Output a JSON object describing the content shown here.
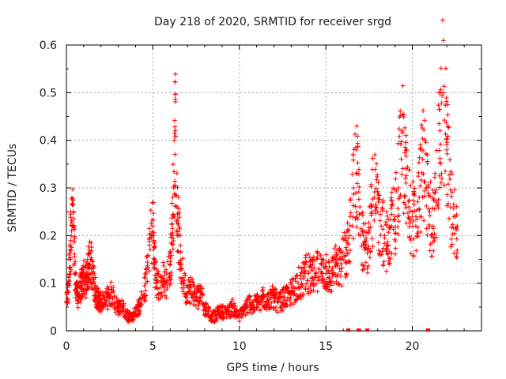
{
  "chart_data": {
    "type": "scatter",
    "title": "Day 218 of 2020, SRMTID for receiver srgd",
    "xlabel": "GPS time / hours",
    "ylabel": "SRMTID / TECUs",
    "xlim": [
      0,
      24
    ],
    "ylim": [
      0,
      0.6
    ],
    "x_ticks": [
      0,
      5,
      10,
      15,
      20
    ],
    "x_tick_labels": [
      "0",
      "5",
      "10",
      "15",
      "20"
    ],
    "y_ticks": [
      0,
      0.1,
      0.2,
      0.3,
      0.4,
      0.5,
      0.6
    ],
    "y_tick_labels": [
      "0",
      "0.1",
      "0.2",
      "0.3",
      "0.4",
      "0.5",
      "0.6"
    ],
    "grid": true,
    "marker": "+",
    "marker_color": "#ff0000",
    "x_range_data": [
      0,
      22.6
    ],
    "gap_markers_x": [
      16.3,
      16.9,
      17.4,
      20.9
    ],
    "series": [
      {
        "name": "SRMTID",
        "x": [
          0.0,
          0.1,
          0.2,
          0.3,
          0.4,
          0.5,
          0.6,
          0.7,
          0.8,
          0.9,
          1.0,
          1.1,
          1.2,
          1.3,
          1.4,
          1.5,
          1.6,
          1.7,
          1.8,
          1.9,
          2.0,
          2.2,
          2.4,
          2.6,
          2.8,
          3.0,
          3.2,
          3.4,
          3.6,
          3.8,
          4.0,
          4.2,
          4.4,
          4.6,
          4.8,
          5.0,
          5.1,
          5.2,
          5.4,
          5.6,
          5.8,
          6.0,
          6.1,
          6.2,
          6.3,
          6.4,
          6.5,
          6.6,
          6.8,
          7.0,
          7.2,
          7.4,
          7.6,
          7.8,
          8.0,
          8.2,
          8.4,
          8.6,
          8.8,
          9.0,
          9.2,
          9.4,
          9.6,
          9.8,
          10.0,
          10.2,
          10.4,
          10.6,
          10.8,
          11.0,
          11.2,
          11.4,
          11.6,
          11.8,
          12.0,
          12.2,
          12.4,
          12.6,
          12.8,
          13.0,
          13.2,
          13.4,
          13.6,
          13.8,
          14.0,
          14.2,
          14.4,
          14.6,
          14.8,
          15.0,
          15.2,
          15.4,
          15.6,
          15.8,
          16.0,
          16.2,
          16.4,
          16.6,
          16.8,
          17.0,
          17.2,
          17.4,
          17.6,
          17.8,
          18.0,
          18.2,
          18.4,
          18.6,
          18.8,
          19.0,
          19.2,
          19.4,
          19.6,
          19.8,
          20.0,
          20.2,
          20.4,
          20.6,
          20.8,
          21.0,
          21.2,
          21.4,
          21.6,
          21.8,
          22.0,
          22.2,
          22.4,
          22.6
        ],
        "y": [
          0.06,
          0.08,
          0.17,
          0.21,
          0.25,
          0.12,
          0.08,
          0.07,
          0.09,
          0.1,
          0.11,
          0.1,
          0.12,
          0.14,
          0.15,
          0.12,
          0.1,
          0.08,
          0.07,
          0.06,
          0.06,
          0.06,
          0.07,
          0.08,
          0.06,
          0.05,
          0.05,
          0.04,
          0.03,
          0.03,
          0.04,
          0.05,
          0.07,
          0.1,
          0.18,
          0.22,
          0.15,
          0.1,
          0.09,
          0.11,
          0.1,
          0.14,
          0.2,
          0.3,
          0.42,
          0.26,
          0.2,
          0.14,
          0.1,
          0.08,
          0.09,
          0.08,
          0.07,
          0.08,
          0.05,
          0.04,
          0.03,
          0.03,
          0.04,
          0.04,
          0.04,
          0.04,
          0.05,
          0.04,
          0.03,
          0.04,
          0.05,
          0.06,
          0.05,
          0.06,
          0.06,
          0.07,
          0.06,
          0.07,
          0.07,
          0.06,
          0.06,
          0.07,
          0.07,
          0.08,
          0.09,
          0.1,
          0.1,
          0.12,
          0.12,
          0.11,
          0.12,
          0.13,
          0.12,
          0.13,
          0.11,
          0.12,
          0.14,
          0.13,
          0.15,
          0.17,
          0.2,
          0.3,
          0.33,
          0.2,
          0.18,
          0.17,
          0.26,
          0.28,
          0.25,
          0.22,
          0.2,
          0.18,
          0.22,
          0.24,
          0.3,
          0.42,
          0.32,
          0.26,
          0.24,
          0.22,
          0.28,
          0.36,
          0.3,
          0.25,
          0.22,
          0.27,
          0.42,
          0.5,
          0.38,
          0.26,
          0.24,
          0.22
        ]
      }
    ]
  }
}
